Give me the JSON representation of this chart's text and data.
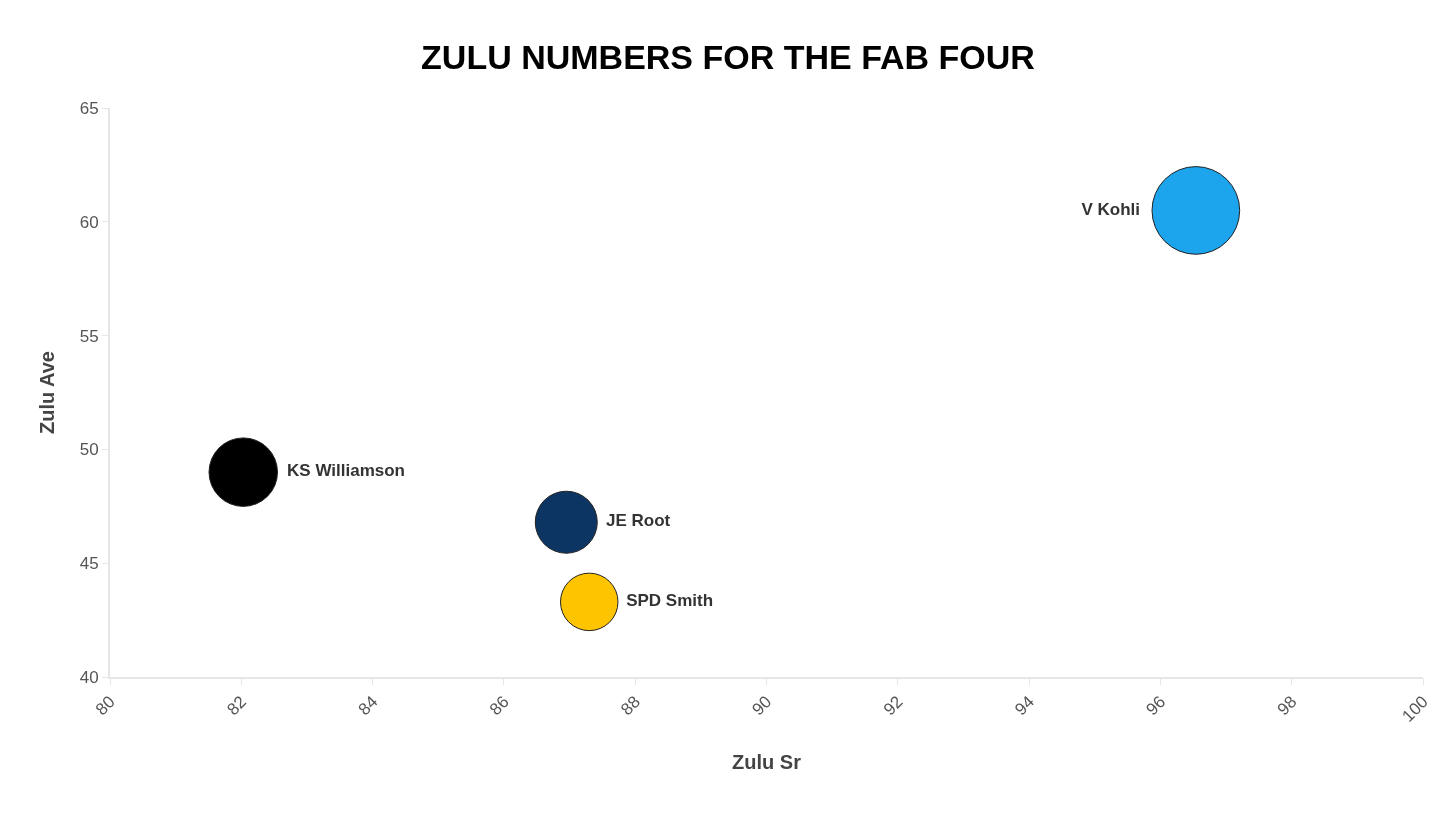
{
  "chart_data": {
    "type": "bubble",
    "title": "ZULU NUMBERS FOR THE FAB FOUR",
    "xlabel": "Zulu Sr",
    "ylabel": "Zulu Ave",
    "xlim": [
      80,
      100
    ],
    "xticks": [
      80,
      82,
      84,
      86,
      88,
      90,
      92,
      94,
      96,
      98,
      100
    ],
    "ylim": [
      40,
      65
    ],
    "yticks": [
      40,
      45,
      50,
      55,
      60,
      65
    ],
    "legend": false,
    "series": [
      {
        "name": "V Kohli",
        "color": "#1ca4ec",
        "x": [
          96.54
        ],
        "values": [
          60.5
        ],
        "sizes": [
          1
        ]
      },
      {
        "name": "KS Williamson",
        "color": "#000000",
        "x": [
          82.03
        ],
        "values": [
          49.0
        ],
        "sizes": [
          0.61
        ]
      },
      {
        "name": "JE Root",
        "color": "#0d3563",
        "x": [
          86.95
        ],
        "values": [
          46.8
        ],
        "sizes": [
          0.5
        ]
      },
      {
        "name": "SPD Smith",
        "color": "#ffc400",
        "x": [
          87.3
        ],
        "values": [
          43.3
        ],
        "sizes": [
          0.43
        ]
      }
    ]
  }
}
